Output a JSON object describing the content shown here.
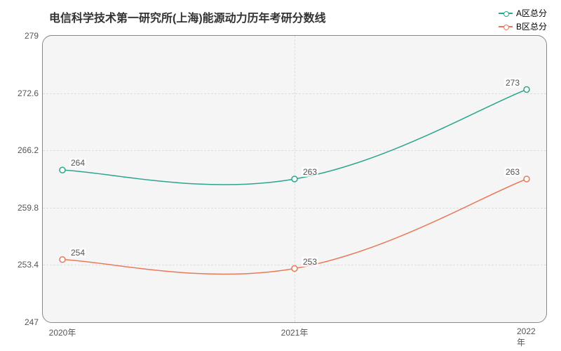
{
  "chart": {
    "type": "line",
    "title": "电信科学技术第一研究所(上海)能源动力历年考研分数线",
    "title_fontsize": 16,
    "title_color": "#333333",
    "background_color": "#f5f5f5",
    "border_color": "#888888",
    "border_radius": 14,
    "grid_color": "#dddddd",
    "x_categories": [
      "2020年",
      "2021年",
      "2022年"
    ],
    "y_ticks": [
      247,
      253.4,
      259.8,
      266.2,
      272.6,
      279
    ],
    "ylim": [
      247,
      279
    ],
    "label_fontsize": 12,
    "label_color": "#555555",
    "line_width": 1.5,
    "marker_radius": 4,
    "marker_fill": "#ffffff",
    "series": [
      {
        "name": "A区总分",
        "color": "#2ca58d",
        "values": [
          264,
          263,
          273
        ],
        "labels": [
          "264",
          "263",
          "273"
        ]
      },
      {
        "name": "B区总分",
        "color": "#e87a59",
        "values": [
          254,
          253,
          263
        ],
        "labels": [
          "254",
          "253",
          "263"
        ]
      }
    ]
  }
}
